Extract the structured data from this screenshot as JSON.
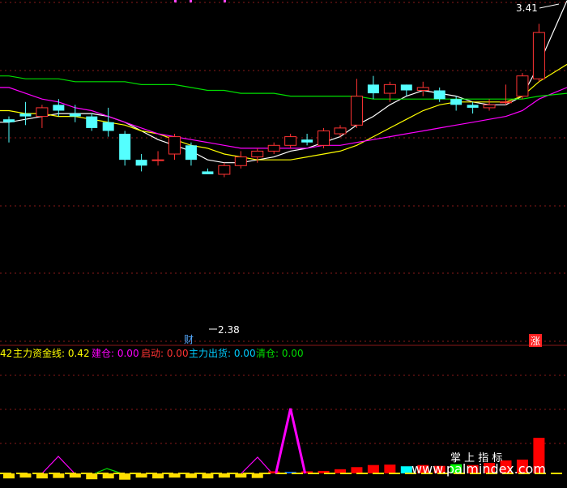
{
  "chart_data": {
    "type": "candlestick",
    "annotations": {
      "high_price": "3.41",
      "low_price": "2.38",
      "cai_badge": "财",
      "zhang_badge": "涨"
    },
    "candles": [
      {
        "o": 3.07,
        "h": 3.08,
        "l": 2.99,
        "c": 3.06
      },
      {
        "o": 3.09,
        "h": 3.13,
        "l": 3.05,
        "c": 3.08
      },
      {
        "o": 3.08,
        "h": 3.12,
        "l": 3.04,
        "c": 3.11
      },
      {
        "o": 3.12,
        "h": 3.14,
        "l": 3.08,
        "c": 3.1
      },
      {
        "o": 3.09,
        "h": 3.12,
        "l": 3.06,
        "c": 3.08
      },
      {
        "o": 3.08,
        "h": 3.09,
        "l": 3.03,
        "c": 3.04
      },
      {
        "o": 3.06,
        "h": 3.11,
        "l": 3.01,
        "c": 3.03
      },
      {
        "o": 3.02,
        "h": 3.03,
        "l": 2.91,
        "c": 2.93
      },
      {
        "o": 2.93,
        "h": 2.95,
        "l": 2.89,
        "c": 2.91
      },
      {
        "o": 2.93,
        "h": 2.96,
        "l": 2.91,
        "c": 2.93
      },
      {
        "o": 2.95,
        "h": 3.02,
        "l": 2.93,
        "c": 3.01
      },
      {
        "o": 2.98,
        "h": 2.99,
        "l": 2.91,
        "c": 2.93
      },
      {
        "o": 2.89,
        "h": 2.9,
        "l": 2.88,
        "c": 2.88
      },
      {
        "o": 2.88,
        "h": 2.92,
        "l": 2.87,
        "c": 2.91
      },
      {
        "o": 2.91,
        "h": 2.96,
        "l": 2.9,
        "c": 2.94
      },
      {
        "o": 2.94,
        "h": 2.97,
        "l": 2.92,
        "c": 2.96
      },
      {
        "o": 2.96,
        "h": 2.99,
        "l": 2.95,
        "c": 2.98
      },
      {
        "o": 2.98,
        "h": 3.02,
        "l": 2.97,
        "c": 3.01
      },
      {
        "o": 3.0,
        "h": 3.02,
        "l": 2.98,
        "c": 2.99
      },
      {
        "o": 2.98,
        "h": 3.04,
        "l": 2.97,
        "c": 3.03
      },
      {
        "o": 3.02,
        "h": 3.05,
        "l": 3.01,
        "c": 3.04
      },
      {
        "o": 3.05,
        "h": 3.21,
        "l": 3.04,
        "c": 3.15
      },
      {
        "o": 3.19,
        "h": 3.22,
        "l": 3.14,
        "c": 3.16
      },
      {
        "o": 3.16,
        "h": 3.2,
        "l": 3.13,
        "c": 3.19
      },
      {
        "o": 3.19,
        "h": 3.19,
        "l": 3.15,
        "c": 3.17
      },
      {
        "o": 3.17,
        "h": 3.2,
        "l": 3.15,
        "c": 3.18
      },
      {
        "o": 3.17,
        "h": 3.18,
        "l": 3.13,
        "c": 3.14
      },
      {
        "o": 3.14,
        "h": 3.15,
        "l": 3.1,
        "c": 3.12
      },
      {
        "o": 3.12,
        "h": 3.13,
        "l": 3.09,
        "c": 3.11
      },
      {
        "o": 3.11,
        "h": 3.14,
        "l": 3.1,
        "c": 3.12
      },
      {
        "o": 3.13,
        "h": 3.19,
        "l": 3.12,
        "c": 3.13
      },
      {
        "o": 3.15,
        "h": 3.23,
        "l": 3.14,
        "c": 3.22
      },
      {
        "o": 3.21,
        "h": 3.4,
        "l": 3.2,
        "c": 3.37
      }
    ],
    "price_axis": {
      "min": 2.3,
      "max": 3.46
    },
    "moving_averages": [
      {
        "color": "#ffffff",
        "values": [
          3.06,
          3.07,
          3.08,
          3.09,
          3.09,
          3.09,
          3.08,
          3.06,
          3.03,
          3.0,
          2.98,
          2.96,
          2.93,
          2.92,
          2.92,
          2.93,
          2.94,
          2.96,
          2.97,
          2.99,
          3.01,
          3.05,
          3.08,
          3.12,
          3.15,
          3.17,
          3.16,
          3.15,
          3.13,
          3.12,
          3.12,
          3.15,
          3.26
        ]
      },
      {
        "color": "#ffff00",
        "values": [
          3.1,
          3.09,
          3.09,
          3.08,
          3.08,
          3.07,
          3.06,
          3.05,
          3.03,
          3.02,
          3.0,
          2.98,
          2.97,
          2.95,
          2.94,
          2.93,
          2.93,
          2.93,
          2.94,
          2.95,
          2.96,
          2.98,
          3.01,
          3.04,
          3.07,
          3.1,
          3.12,
          3.13,
          3.13,
          3.13,
          3.13,
          3.15,
          3.2
        ]
      },
      {
        "color": "#ff00ff",
        "values": [
          3.18,
          3.16,
          3.14,
          3.13,
          3.11,
          3.1,
          3.08,
          3.06,
          3.04,
          3.02,
          3.01,
          3.0,
          2.99,
          2.98,
          2.97,
          2.97,
          2.97,
          2.97,
          2.97,
          2.98,
          2.98,
          2.99,
          3.0,
          3.01,
          3.02,
          3.03,
          3.04,
          3.05,
          3.06,
          3.07,
          3.08,
          3.1,
          3.14
        ]
      },
      {
        "color": "#00dd00",
        "values": [
          3.22,
          3.21,
          3.21,
          3.21,
          3.2,
          3.2,
          3.2,
          3.2,
          3.19,
          3.19,
          3.19,
          3.18,
          3.17,
          3.17,
          3.16,
          3.16,
          3.16,
          3.15,
          3.15,
          3.15,
          3.15,
          3.15,
          3.14,
          3.14,
          3.14,
          3.14,
          3.14,
          3.14,
          3.14,
          3.14,
          3.14,
          3.14,
          3.15
        ]
      }
    ],
    "indicator": {
      "legend": [
        {
          "text": "42",
          "color": "#ffff00"
        },
        {
          "text": "主力资金线: 0.42",
          "color": "#ffff00"
        },
        {
          "text": "建仓: 0.00",
          "color": "#ff00ff"
        },
        {
          "text": "启动: 0.00",
          "color": "#ff3333"
        },
        {
          "text": "主力出货: 0.00",
          "color": "#00ccff"
        },
        {
          "text": "清仓: 0.00",
          "color": "#00dd00"
        }
      ],
      "bars": [
        0.12,
        0.1,
        0.12,
        0.11,
        0.1,
        0.14,
        0.12,
        0.15,
        0.1,
        0.12,
        0.1,
        0.11,
        0.12,
        0.1,
        0.1,
        0.11,
        0.05,
        0.04,
        0.05,
        0.06,
        0.1,
        0.15,
        0.2,
        0.21,
        0.17,
        0.2,
        0.18,
        0.22,
        0.2,
        0.25,
        0.31,
        0.33,
        0.85
      ],
      "bar_colors": [
        "#ffdd00",
        "#ffdd00",
        "#ffdd00",
        "#ffdd00",
        "#ffdd00",
        "#ffdd00",
        "#ffdd00",
        "#ffdd00",
        "#ffdd00",
        "#ffdd00",
        "#ffdd00",
        "#ffdd00",
        "#ffdd00",
        "#ffdd00",
        "#ffdd00",
        "#ffdd00",
        "#ff0000",
        "#0066ff",
        "#ff0000",
        "#ff0000",
        "#ff0000",
        "#ff0000",
        "#ff0000",
        "#ff0000",
        "#00ffff",
        "#ff0000",
        "#ff0000",
        "#00ff00",
        "#ff0000",
        "#ff0000",
        "#ff0000",
        "#ff0000",
        "#ff0000"
      ],
      "bars_below_axis": [
        true,
        true,
        true,
        true,
        true,
        true,
        true,
        true,
        true,
        true,
        true,
        true,
        true,
        true,
        true,
        true,
        false,
        false,
        false,
        false,
        false,
        false,
        false,
        false,
        false,
        false,
        false,
        false,
        false,
        false,
        false,
        false,
        false
      ],
      "spike_index": 17,
      "spike_value": 1.0
    },
    "watermark": {
      "line1": "掌  上  指  标",
      "line2": "www.palmindex.com"
    }
  }
}
